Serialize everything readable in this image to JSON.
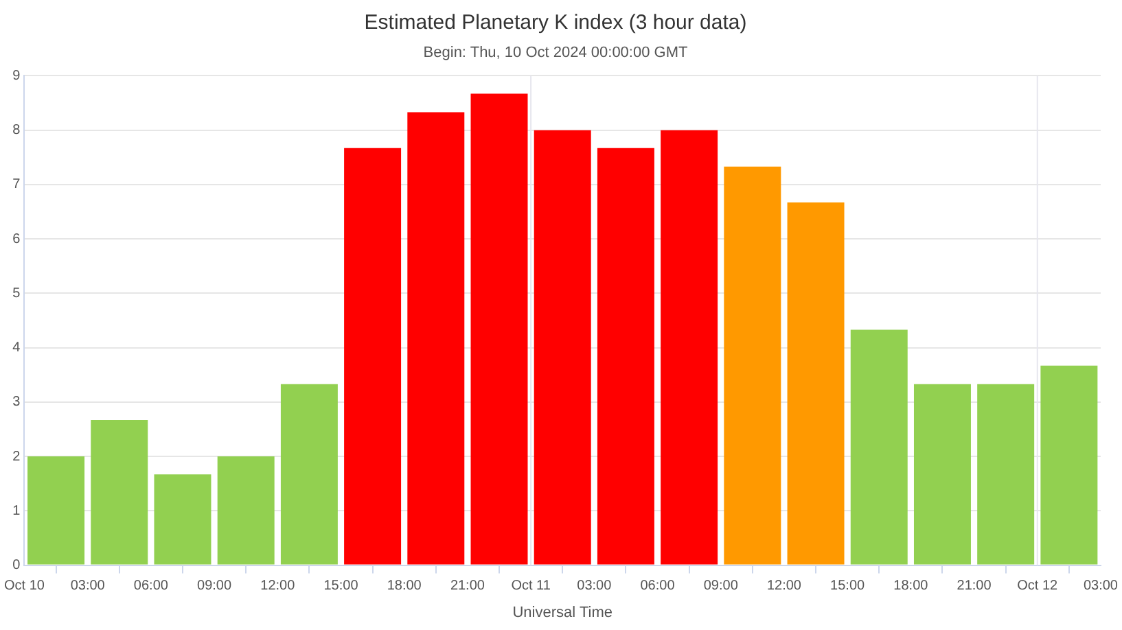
{
  "chart_data": {
    "type": "bar",
    "title": "Estimated Planetary K index (3 hour data)",
    "subtitle": "Begin: Thu, 10 Oct 2024 00:00:00 GMT",
    "xlabel": "Universal Time",
    "x": [
      "2024-10-10T01:30",
      "2024-10-10T04:30",
      "2024-10-10T07:30",
      "2024-10-10T10:30",
      "2024-10-10T13:30",
      "2024-10-10T16:30",
      "2024-10-10T19:30",
      "2024-10-10T22:30",
      "2024-10-11T01:30",
      "2024-10-11T04:30",
      "2024-10-11T07:30",
      "2024-10-11T10:30",
      "2024-10-11T13:30",
      "2024-10-11T16:30",
      "2024-10-11T19:30",
      "2024-10-11T22:30",
      "2024-10-12T01:30"
    ],
    "values": [
      2,
      2.67,
      1.67,
      2,
      3.33,
      7.67,
      8.33,
      8.67,
      8,
      7.67,
      8,
      7.33,
      6.67,
      4.33,
      3.33,
      3.33,
      3.67
    ],
    "colors": [
      "#92d050",
      "#92d050",
      "#92d050",
      "#92d050",
      "#92d050",
      "#ff0000",
      "#ff0000",
      "#ff0000",
      "#ff0000",
      "#ff0000",
      "#ff0000",
      "#ff9900",
      "#ff9900",
      "#92d050",
      "#92d050",
      "#92d050",
      "#92d050"
    ],
    "xlim": [
      "2024-10-10T00:00",
      "2024-10-12T03:00"
    ],
    "xticks": [
      {
        "value": "2024-10-10T00:00",
        "label": "Oct 10"
      },
      {
        "value": "2024-10-10T03:00",
        "label": "03:00"
      },
      {
        "value": "2024-10-10T06:00",
        "label": "06:00"
      },
      {
        "value": "2024-10-10T09:00",
        "label": "09:00"
      },
      {
        "value": "2024-10-10T12:00",
        "label": "12:00"
      },
      {
        "value": "2024-10-10T15:00",
        "label": "15:00"
      },
      {
        "value": "2024-10-10T18:00",
        "label": "18:00"
      },
      {
        "value": "2024-10-10T21:00",
        "label": "21:00"
      },
      {
        "value": "2024-10-11T00:00",
        "label": "Oct 11"
      },
      {
        "value": "2024-10-11T03:00",
        "label": "03:00"
      },
      {
        "value": "2024-10-11T06:00",
        "label": "06:00"
      },
      {
        "value": "2024-10-11T09:00",
        "label": "09:00"
      },
      {
        "value": "2024-10-11T12:00",
        "label": "12:00"
      },
      {
        "value": "2024-10-11T15:00",
        "label": "15:00"
      },
      {
        "value": "2024-10-11T18:00",
        "label": "18:00"
      },
      {
        "value": "2024-10-11T21:00",
        "label": "21:00"
      },
      {
        "value": "2024-10-12T00:00",
        "label": "Oct 12"
      },
      {
        "value": "2024-10-12T03:00",
        "label": "03:00"
      }
    ],
    "ylim": [
      0,
      9
    ],
    "yticks": [
      0,
      1,
      2,
      3,
      4,
      5,
      6,
      7,
      8,
      9
    ],
    "grid": "y",
    "ref_lines": [
      {
        "axis": "x",
        "value": "2024-10-11T00:00",
        "color": "#e6e6ee"
      },
      {
        "axis": "x",
        "value": "2024-10-12T00:00",
        "color": "#e6e6ee"
      }
    ],
    "legend": false
  }
}
